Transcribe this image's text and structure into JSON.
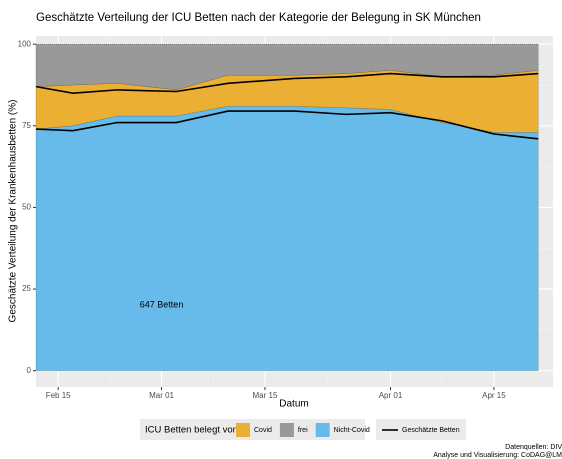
{
  "chart_data": {
    "type": "stacked-area",
    "title": "Geschätzte Verteilung der ICU Betten nach der Kategorie der Belegung in SK München",
    "x_label": "Datum",
    "y_label": "Geschätzte Verteilung der Krankenhausbetten (%)",
    "x": [
      "Feb 12",
      "Feb 17",
      "Feb 23",
      "Mar 03",
      "Mar 10",
      "Mar 19",
      "Mar 26",
      "Apr 01",
      "Apr 08",
      "Apr 15",
      "Apr 21"
    ],
    "series": [
      {
        "name": "Nicht-Covid",
        "color": "#66bbea",
        "values": [
          74,
          75,
          78,
          78,
          81,
          81,
          80.5,
          80,
          76,
          73,
          73
        ]
      },
      {
        "name": "Covid",
        "color": "#ebb033",
        "values": [
          13,
          12.5,
          10,
          8,
          9.5,
          9.5,
          10.5,
          12,
          14,
          17.5,
          19
        ]
      },
      {
        "name": "frei",
        "color": "#999999",
        "values": [
          13,
          12.5,
          12,
          14,
          9.5,
          9.5,
          9,
          8,
          10,
          9.5,
          8
        ]
      }
    ],
    "estimate": {
      "name": "Geschätzte Betten",
      "color": "#000000",
      "lines": [
        [
          74,
          73.5,
          76,
          76,
          79.5,
          79.5,
          78.5,
          79,
          76.5,
          72.5,
          71
        ],
        [
          87,
          85,
          86,
          85.5,
          88,
          89.5,
          90,
          91,
          90,
          90,
          91
        ]
      ]
    },
    "legend_title": "ICU Betten belegt von:",
    "annotation": {
      "text": "647 Betten",
      "x": "Mar 01",
      "y": 20
    },
    "caption": [
      "Datenquellen: DIV",
      "Analyse und Visualisierung: CoDAG@LM"
    ],
    "xlim": [
      "Feb 12",
      "Apr 23"
    ],
    "xticks": [
      "Feb 15",
      "Mar 01",
      "Mar 15",
      "Apr 01",
      "Apr 15"
    ],
    "ylim": [
      -5,
      102.5
    ],
    "yticks": [
      0,
      25,
      50,
      75,
      100
    ],
    "grid": true
  }
}
